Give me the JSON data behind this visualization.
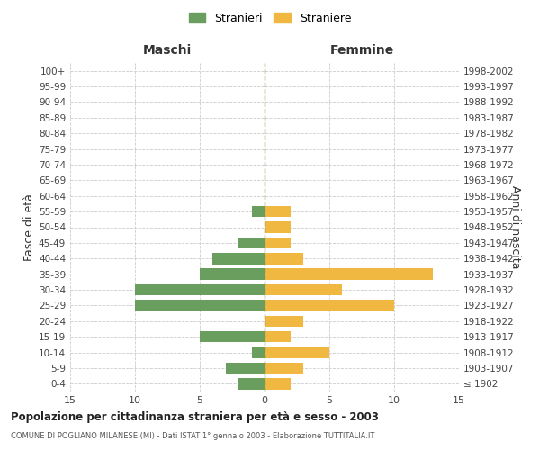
{
  "age_groups": [
    "100+",
    "95-99",
    "90-94",
    "85-89",
    "80-84",
    "75-79",
    "70-74",
    "65-69",
    "60-64",
    "55-59",
    "50-54",
    "45-49",
    "40-44",
    "35-39",
    "30-34",
    "25-29",
    "20-24",
    "15-19",
    "10-14",
    "5-9",
    "0-4"
  ],
  "birth_years": [
    "≤ 1902",
    "1903-1907",
    "1908-1912",
    "1913-1917",
    "1918-1922",
    "1923-1927",
    "1928-1932",
    "1933-1937",
    "1938-1942",
    "1943-1947",
    "1948-1952",
    "1953-1957",
    "1958-1962",
    "1963-1967",
    "1968-1972",
    "1973-1977",
    "1978-1982",
    "1983-1987",
    "1988-1992",
    "1993-1997",
    "1998-2002"
  ],
  "males": [
    0,
    0,
    0,
    0,
    0,
    0,
    0,
    0,
    0,
    1,
    0,
    2,
    4,
    5,
    10,
    10,
    0,
    5,
    1,
    3,
    2
  ],
  "females": [
    0,
    0,
    0,
    0,
    0,
    0,
    0,
    0,
    0,
    2,
    2,
    2,
    3,
    13,
    6,
    10,
    3,
    2,
    5,
    3,
    2
  ],
  "male_color": "#6a9e5e",
  "female_color": "#f0b840",
  "grid_color": "#cccccc",
  "center_line_color": "#8b8b4e",
  "xlim": 15,
  "title": "Popolazione per cittadinanza straniera per età e sesso - 2003",
  "subtitle": "COMUNE DI POGLIANO MILANESE (MI) - Dati ISTAT 1° gennaio 2003 - Elaborazione TUTTITALIA.IT",
  "ylabel_left": "Fasce di età",
  "ylabel_right": "Anni di nascita",
  "header_left": "Maschi",
  "header_right": "Femmine",
  "legend_male": "Stranieri",
  "legend_female": "Straniere",
  "bg_color": "#ffffff"
}
